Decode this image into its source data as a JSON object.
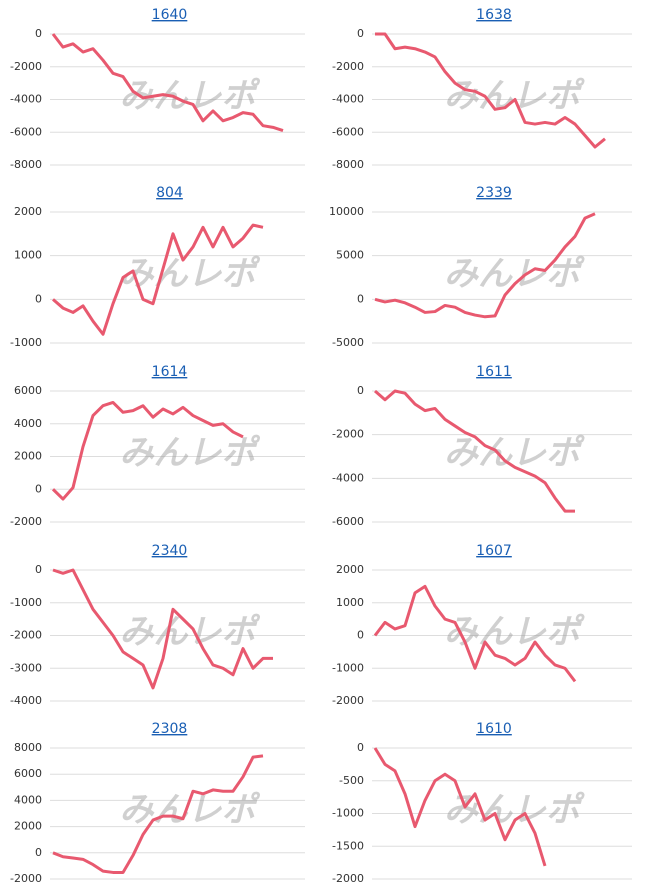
{
  "watermark": "みんレポ",
  "chart_data": [
    {
      "type": "line",
      "title": "1640",
      "ylim": [
        -8000,
        0
      ],
      "yticks": [
        0,
        -2000,
        -4000,
        -6000,
        -8000
      ],
      "grid": true,
      "color": "#e8596f",
      "values": [
        0,
        -800,
        -600,
        -1100,
        -900,
        -1600,
        -2400,
        -2600,
        -3500,
        -3900,
        -3800,
        -3700,
        -3800,
        -4100,
        -4300,
        -5300,
        -4700,
        -5300,
        -5100,
        -4800,
        -4900,
        -5600,
        -5700,
        -5900
      ]
    },
    {
      "type": "line",
      "title": "1638",
      "ylim": [
        -8000,
        0
      ],
      "yticks": [
        0,
        -2000,
        -4000,
        -6000,
        -8000
      ],
      "grid": true,
      "color": "#e8596f",
      "values": [
        0,
        0,
        -900,
        -800,
        -900,
        -1100,
        -1400,
        -2300,
        -3000,
        -3400,
        -3500,
        -3800,
        -4600,
        -4500,
        -4000,
        -5400,
        -5500,
        -5400,
        -5500,
        -5100,
        -5500,
        -6200,
        -6900,
        -6400
      ]
    },
    {
      "type": "line",
      "title": "804",
      "ylim": [
        -1000,
        2000
      ],
      "yticks": [
        2000,
        1000,
        0,
        -1000
      ],
      "grid": true,
      "color": "#e8596f",
      "values": [
        0,
        -200,
        -300,
        -150,
        -500,
        -800,
        -100,
        500,
        650,
        0,
        -100,
        700,
        1500,
        900,
        1200,
        1650,
        1200,
        1650,
        1200,
        1400,
        1700,
        1650
      ]
    },
    {
      "type": "line",
      "title": "2339",
      "ylim": [
        -5000,
        10000
      ],
      "yticks": [
        10000,
        5000,
        0,
        -5000
      ],
      "grid": true,
      "color": "#e8596f",
      "values": [
        0,
        -300,
        -100,
        -400,
        -900,
        -1500,
        -1400,
        -700,
        -900,
        -1500,
        -1800,
        -2000,
        -1900,
        500,
        1800,
        2800,
        3500,
        3300,
        4500,
        6000,
        7200,
        9300,
        9800
      ]
    },
    {
      "type": "line",
      "title": "1614",
      "ylim": [
        -2000,
        6000
      ],
      "yticks": [
        6000,
        4000,
        2000,
        0,
        -2000
      ],
      "grid": true,
      "color": "#e8596f",
      "values": [
        0,
        -600,
        100,
        2600,
        4500,
        5100,
        5300,
        4700,
        4800,
        5100,
        4400,
        4900,
        4600,
        5000,
        4500,
        4200,
        3900,
        4000,
        3500,
        3200
      ]
    },
    {
      "type": "line",
      "title": "1611",
      "ylim": [
        -6000,
        0
      ],
      "yticks": [
        0,
        -2000,
        -4000,
        -6000
      ],
      "grid": true,
      "color": "#e8596f",
      "values": [
        0,
        -400,
        0,
        -100,
        -600,
        -900,
        -800,
        -1300,
        -1600,
        -1900,
        -2100,
        -2500,
        -2700,
        -3200,
        -3500,
        -3700,
        -3900,
        -4200,
        -4900,
        -5500,
        -5500
      ]
    },
    {
      "type": "line",
      "title": "2340",
      "ylim": [
        -4000,
        0
      ],
      "yticks": [
        0,
        -1000,
        -2000,
        -3000,
        -4000
      ],
      "grid": true,
      "color": "#e8596f",
      "values": [
        0,
        -100,
        0,
        -600,
        -1200,
        -1600,
        -2000,
        -2500,
        -2700,
        -2900,
        -3600,
        -2700,
        -1200,
        -1500,
        -1800,
        -2400,
        -2900,
        -3000,
        -3200,
        -2400,
        -3000,
        -2700,
        -2700
      ]
    },
    {
      "type": "line",
      "title": "1607",
      "ylim": [
        -2000,
        2000
      ],
      "yticks": [
        2000,
        1000,
        0,
        -1000,
        -2000
      ],
      "grid": true,
      "color": "#e8596f",
      "values": [
        0,
        400,
        200,
        300,
        1300,
        1500,
        900,
        500,
        400,
        -200,
        -1000,
        -200,
        -600,
        -700,
        -900,
        -700,
        -200,
        -600,
        -900,
        -1000,
        -1400
      ]
    },
    {
      "type": "line",
      "title": "2308",
      "ylim": [
        -2000,
        8000
      ],
      "yticks": [
        8000,
        6000,
        4000,
        2000,
        0,
        -2000
      ],
      "grid": true,
      "color": "#e8596f",
      "values": [
        0,
        -300,
        -400,
        -500,
        -900,
        -1400,
        -1500,
        -1500,
        -200,
        1400,
        2500,
        2800,
        2800,
        2600,
        4700,
        4500,
        4800,
        4700,
        4700,
        5800,
        7300,
        7400
      ]
    },
    {
      "type": "line",
      "title": "1610",
      "ylim": [
        -2000,
        0
      ],
      "yticks": [
        0,
        -500,
        -1000,
        -1500,
        -2000
      ],
      "grid": true,
      "color": "#e8596f",
      "values": [
        0,
        -250,
        -350,
        -700,
        -1200,
        -800,
        -500,
        -400,
        -500,
        -900,
        -700,
        -1100,
        -1000,
        -1400,
        -1100,
        -1000,
        -1300,
        -1800
      ]
    }
  ]
}
